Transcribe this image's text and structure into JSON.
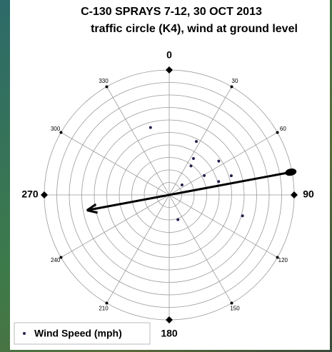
{
  "chart_data": {
    "type": "polar_scatter",
    "title": "C-130 SPRAYS 7-12, 30 OCT 2013",
    "subtitle": "traffic circle (K4), wind at ground level",
    "thetaticks": [
      0,
      30,
      60,
      90,
      120,
      150,
      180,
      210,
      240,
      270,
      300,
      330
    ],
    "rlim": [
      0,
      10
    ],
    "rticks": [
      1,
      2,
      3,
      4,
      5,
      6,
      7,
      8,
      9,
      10
    ],
    "series": [
      {
        "name": "Wind Speed (mph)",
        "color": "#22224e",
        "theta": [
          344.5,
          26.9,
          33.7,
          36.9,
          55.7,
          61.1,
          72.8,
          74.8,
          52.1,
          105.9,
          160.6
        ],
        "r": [
          5.6,
          4.8,
          3.5,
          2.9,
          4.8,
          3.2,
          5.2,
          4.1,
          1.3,
          6.1,
          2.1
        ]
      }
    ],
    "wind_arrow": {
      "theta": 79.4,
      "r_tail": 9.9,
      "r_head": 6.7
    },
    "legend": "lower left"
  }
}
